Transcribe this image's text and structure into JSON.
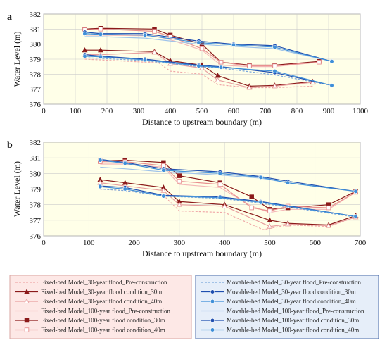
{
  "colors": {
    "plot_bg": "#ffffe8",
    "grid": "#cccccc",
    "legend_left_bg": "#fde8e6",
    "legend_right_bg": "#e6eef9",
    "legend_border_left": "#d9a6a2",
    "legend_border_right": "#4a6aa8"
  },
  "chart_data": [
    {
      "panel": "a",
      "type": "line",
      "xlabel": "Distance to upstream boundary (m)",
      "ylabel": "Water Level (m)",
      "xlim": [
        0,
        1000
      ],
      "ylim": [
        376,
        382
      ],
      "xticks": [
        0,
        100,
        200,
        300,
        400,
        500,
        600,
        700,
        800,
        900,
        1000
      ],
      "yticks": [
        376,
        377,
        378,
        379,
        380,
        381,
        382
      ],
      "grid": true,
      "series": [
        {
          "name": "Fixed-bed Model_30-year flood_Pre-construction",
          "color": "#f0a8a8",
          "dash": "3,2",
          "marker": "none",
          "x": [
            130,
            180,
            320,
            360,
            400,
            500,
            550,
            650,
            730,
            850
          ],
          "y": [
            379.0,
            378.95,
            378.8,
            378.8,
            378.2,
            378.0,
            377.3,
            377.1,
            377.1,
            377.2
          ]
        },
        {
          "name": "Fixed-bed Model_30-year flood condition_30m",
          "color": "#8b1a1a",
          "dash": "",
          "marker": "triangle",
          "x": [
            130,
            180,
            350,
            400,
            500,
            550,
            650,
            730,
            850
          ],
          "y": [
            379.6,
            379.6,
            379.5,
            378.9,
            378.6,
            377.9,
            377.2,
            377.25,
            377.5
          ]
        },
        {
          "name": "Fixed-bed Model_30-year flood condition_40m",
          "color": "#e8a0a0",
          "dash": "",
          "marker": "triangle-open",
          "x": [
            130,
            180,
            350,
            400,
            500,
            550,
            650,
            730,
            850
          ],
          "y": [
            379.3,
            379.3,
            379.45,
            378.7,
            378.4,
            377.6,
            377.1,
            377.2,
            377.45
          ]
        },
        {
          "name": "Fixed-bed Model_100-year flood_Pre-construction",
          "color": "#f4b8b8",
          "dash": "",
          "marker": "none",
          "x": [
            130,
            180,
            350,
            400,
            500,
            560,
            650,
            730,
            870
          ],
          "y": [
            380.6,
            380.6,
            380.55,
            380.3,
            379.6,
            378.6,
            378.5,
            378.5,
            378.8
          ]
        },
        {
          "name": "Fixed-bed Model_100-year flood condition_30m",
          "color": "#8b1a1a",
          "dash": "",
          "marker": "square",
          "x": [
            130,
            180,
            350,
            400,
            500,
            560,
            650,
            730,
            870
          ],
          "y": [
            381.0,
            381.05,
            381.0,
            380.6,
            380.0,
            378.8,
            378.6,
            378.6,
            378.85
          ]
        },
        {
          "name": "Fixed-bed Model_100-year flood condition_40m",
          "color": "#e89090",
          "dash": "",
          "marker": "square-open",
          "x": [
            130,
            180,
            350,
            400,
            500,
            560,
            650,
            730,
            870
          ],
          "y": [
            380.95,
            381.0,
            380.85,
            380.5,
            379.7,
            378.8,
            378.55,
            378.55,
            378.8
          ]
        },
        {
          "name": "Movable-bed Model_30-year flood_Pre-construction",
          "color": "#7aa8dc",
          "dash": "3,2",
          "marker": "none",
          "x": [
            130,
            180,
            320,
            490,
            560,
            730,
            910
          ],
          "y": [
            379.1,
            379.05,
            378.9,
            378.5,
            378.4,
            377.95,
            377.25
          ]
        },
        {
          "name": "Movable-bed Model_30-year flood condition_30m",
          "color": "#1f4fb0",
          "dash": "",
          "marker": "dot",
          "x": [
            130,
            180,
            320,
            490,
            560,
            730,
            910
          ],
          "y": [
            379.3,
            379.2,
            379.0,
            378.6,
            378.5,
            378.1,
            377.25
          ]
        },
        {
          "name": "Movable-bed Model_30-year flood condition_40m",
          "color": "#3f8fd8",
          "dash": "",
          "marker": "dot",
          "x": [
            130,
            180,
            320,
            490,
            560,
            730,
            910
          ],
          "y": [
            379.2,
            379.15,
            378.95,
            378.55,
            378.45,
            378.2,
            377.25
          ]
        },
        {
          "name": "Movable-bed Model_100-year flood_Pre-construction",
          "color": "#9fc3ea",
          "dash": "",
          "marker": "none",
          "x": [
            130,
            180,
            320,
            490,
            560,
            730,
            910
          ],
          "y": [
            380.5,
            380.5,
            380.4,
            380.0,
            379.9,
            379.7,
            378.85
          ]
        },
        {
          "name": "Movable-bed Model_100-year flood condition_30m",
          "color": "#1f4fb0",
          "dash": "",
          "marker": "dot",
          "x": [
            130,
            180,
            320,
            490,
            600,
            730,
            910
          ],
          "y": [
            380.8,
            380.7,
            380.7,
            380.2,
            380.0,
            379.9,
            378.85
          ]
        },
        {
          "name": "Movable-bed Model_100-year flood condition_40m",
          "color": "#3f8fd8",
          "dash": "",
          "marker": "dot",
          "x": [
            130,
            180,
            320,
            490,
            600,
            730,
            910
          ],
          "y": [
            380.7,
            380.65,
            380.6,
            380.1,
            379.95,
            379.8,
            378.85
          ]
        }
      ]
    },
    {
      "panel": "b",
      "type": "line",
      "xlabel": "Distance to upstream boundary (m)",
      "ylabel": "Water Level (m)",
      "xlim": [
        0,
        700
      ],
      "ylim": [
        376,
        382
      ],
      "xticks": [
        0,
        100,
        200,
        300,
        400,
        500,
        600,
        700
      ],
      "yticks": [
        376,
        377,
        378,
        379,
        380,
        381,
        382
      ],
      "grid": true,
      "series": [
        {
          "name": "Fixed-bed Model_30-year flood_Pre-construction",
          "color": "#f0a8a8",
          "dash": "3,2",
          "marker": "none",
          "x": [
            125,
            180,
            265,
            300,
            400,
            485,
            540,
            630,
            690
          ],
          "y": [
            379.0,
            378.9,
            378.6,
            377.6,
            377.5,
            376.4,
            376.7,
            376.6,
            377.2
          ]
        },
        {
          "name": "Fixed-bed Model_30-year flood condition_30m",
          "color": "#8b1a1a",
          "dash": "",
          "marker": "triangle",
          "x": [
            125,
            180,
            265,
            300,
            400,
            500,
            540,
            630,
            690
          ],
          "y": [
            379.6,
            379.4,
            379.1,
            378.2,
            378.0,
            377.0,
            376.8,
            376.7,
            377.3
          ]
        },
        {
          "name": "Fixed-bed Model_30-year flood condition_40m",
          "color": "#e8a0a0",
          "dash": "",
          "marker": "triangle-open",
          "x": [
            125,
            180,
            265,
            300,
            400,
            500,
            540,
            630,
            690
          ],
          "y": [
            379.4,
            379.2,
            378.9,
            378.0,
            377.9,
            376.6,
            376.75,
            376.65,
            377.2
          ]
        },
        {
          "name": "Fixed-bed Model_100-year flood_Pre-construction",
          "color": "#f4b8b8",
          "dash": "",
          "marker": "none",
          "x": [
            125,
            180,
            265,
            300,
            390,
            460,
            500,
            540,
            630,
            690
          ],
          "y": [
            380.6,
            380.6,
            380.4,
            379.3,
            379.1,
            377.9,
            377.5,
            377.7,
            377.7,
            378.8
          ]
        },
        {
          "name": "Fixed-bed Model_100-year flood condition_30m",
          "color": "#8b1a1a",
          "dash": "",
          "marker": "square",
          "x": [
            125,
            180,
            265,
            300,
            390,
            460,
            500,
            540,
            630,
            690
          ],
          "y": [
            380.8,
            380.85,
            380.7,
            379.85,
            379.4,
            378.5,
            377.7,
            377.8,
            378.0,
            378.85
          ]
        },
        {
          "name": "Fixed-bed Model_100-year flood condition_40m",
          "color": "#e89090",
          "dash": "",
          "marker": "square-open",
          "x": [
            125,
            180,
            265,
            300,
            390,
            460,
            500,
            540,
            630,
            690
          ],
          "y": [
            380.75,
            380.75,
            380.5,
            379.5,
            379.3,
            377.8,
            377.6,
            377.9,
            377.8,
            378.8
          ]
        },
        {
          "name": "Movable-bed Model_30-year flood_Pre-construction",
          "color": "#7aa8dc",
          "dash": "3,2",
          "marker": "none",
          "x": [
            125,
            180,
            265,
            390,
            480,
            690
          ],
          "y": [
            379.0,
            378.9,
            378.55,
            378.4,
            378.1,
            377.2
          ]
        },
        {
          "name": "Movable-bed Model_30-year flood condition_30m",
          "color": "#1f4fb0",
          "dash": "",
          "marker": "dot",
          "x": [
            125,
            180,
            265,
            390,
            480,
            690
          ],
          "y": [
            379.2,
            379.1,
            378.6,
            378.5,
            378.2,
            377.25
          ]
        },
        {
          "name": "Movable-bed Model_30-year flood condition_40m",
          "color": "#3f8fd8",
          "dash": "",
          "marker": "dot",
          "x": [
            125,
            180,
            265,
            390,
            480,
            690
          ],
          "y": [
            379.15,
            379.0,
            378.55,
            378.45,
            378.15,
            377.25
          ]
        },
        {
          "name": "Movable-bed Model_100-year flood_Pre-construction",
          "color": "#9fc3ea",
          "dash": "",
          "marker": "none",
          "x": [
            125,
            180,
            265,
            390,
            480,
            540,
            690
          ],
          "y": [
            380.4,
            380.3,
            380.1,
            379.9,
            379.7,
            379.4,
            378.85
          ]
        },
        {
          "name": "Movable-bed Model_100-year flood condition_30m",
          "color": "#1f4fb0",
          "dash": "",
          "marker": "dot",
          "x": [
            125,
            180,
            265,
            390,
            480,
            540,
            690
          ],
          "y": [
            380.9,
            380.7,
            380.3,
            380.1,
            379.8,
            379.5,
            378.85
          ]
        },
        {
          "name": "Movable-bed Model_100-year flood condition_40m",
          "color": "#3f8fd8",
          "dash": "",
          "marker": "dot",
          "x": [
            125,
            180,
            265,
            390,
            480,
            540,
            690
          ],
          "y": [
            380.85,
            380.65,
            380.2,
            380.0,
            379.75,
            379.4,
            378.85
          ]
        }
      ]
    }
  ]
}
